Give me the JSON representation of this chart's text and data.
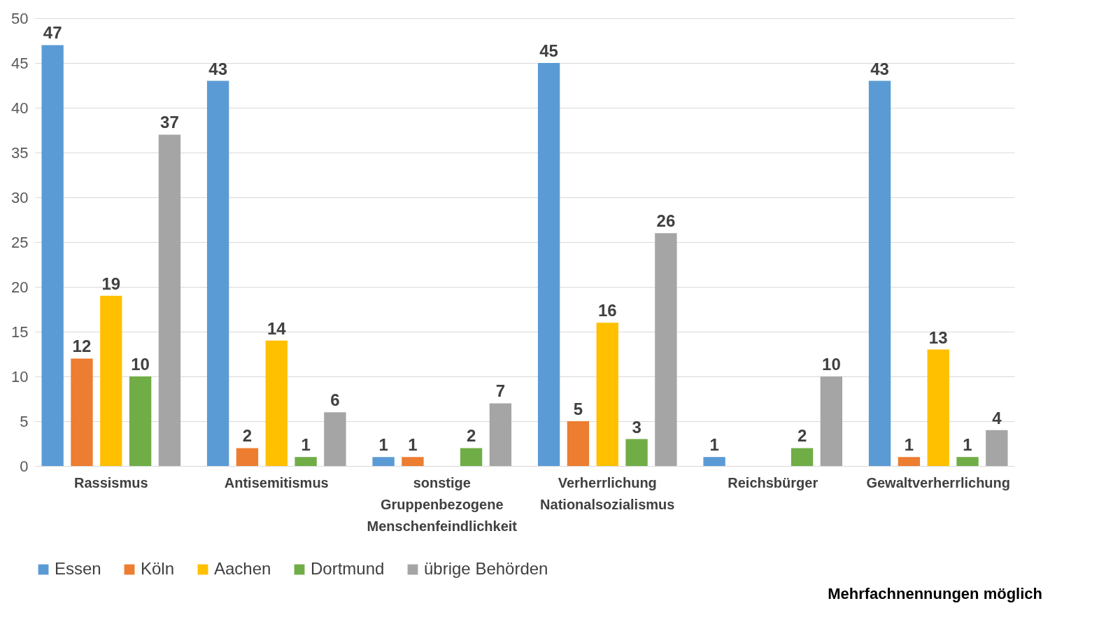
{
  "chart_data": {
    "type": "bar",
    "categories": [
      "Rassismus",
      "Antisemitismus",
      "sonstige\nGruppenbezogene\nMenschenfeindlichkeit",
      "Verherrlichung\nNationalsozialismus",
      "Reichsbürger",
      "Gewaltverherrlichung"
    ],
    "series": [
      {
        "name": "Essen",
        "color": "#5b9bd5",
        "values": [
          47,
          43,
          1,
          45,
          1,
          43
        ]
      },
      {
        "name": "Köln",
        "color": "#ed7d31",
        "values": [
          12,
          2,
          1,
          5,
          null,
          1
        ]
      },
      {
        "name": "Aachen",
        "color": "#ffc000",
        "values": [
          19,
          14,
          null,
          16,
          null,
          13
        ]
      },
      {
        "name": "Dortmund",
        "color": "#70ad47",
        "values": [
          10,
          1,
          2,
          3,
          2,
          1
        ]
      },
      {
        "name": "übrige Behörden",
        "color": "#a5a5a5",
        "values": [
          37,
          6,
          7,
          26,
          10,
          4
        ]
      }
    ],
    "ylim": [
      0,
      50
    ],
    "yticks": [
      0,
      5,
      10,
      15,
      20,
      25,
      30,
      35,
      40,
      45,
      50
    ],
    "grid": "y",
    "legend": "bottom",
    "data_labels": true,
    "annotations": [
      "Mehrfachnennungen möglich"
    ]
  }
}
